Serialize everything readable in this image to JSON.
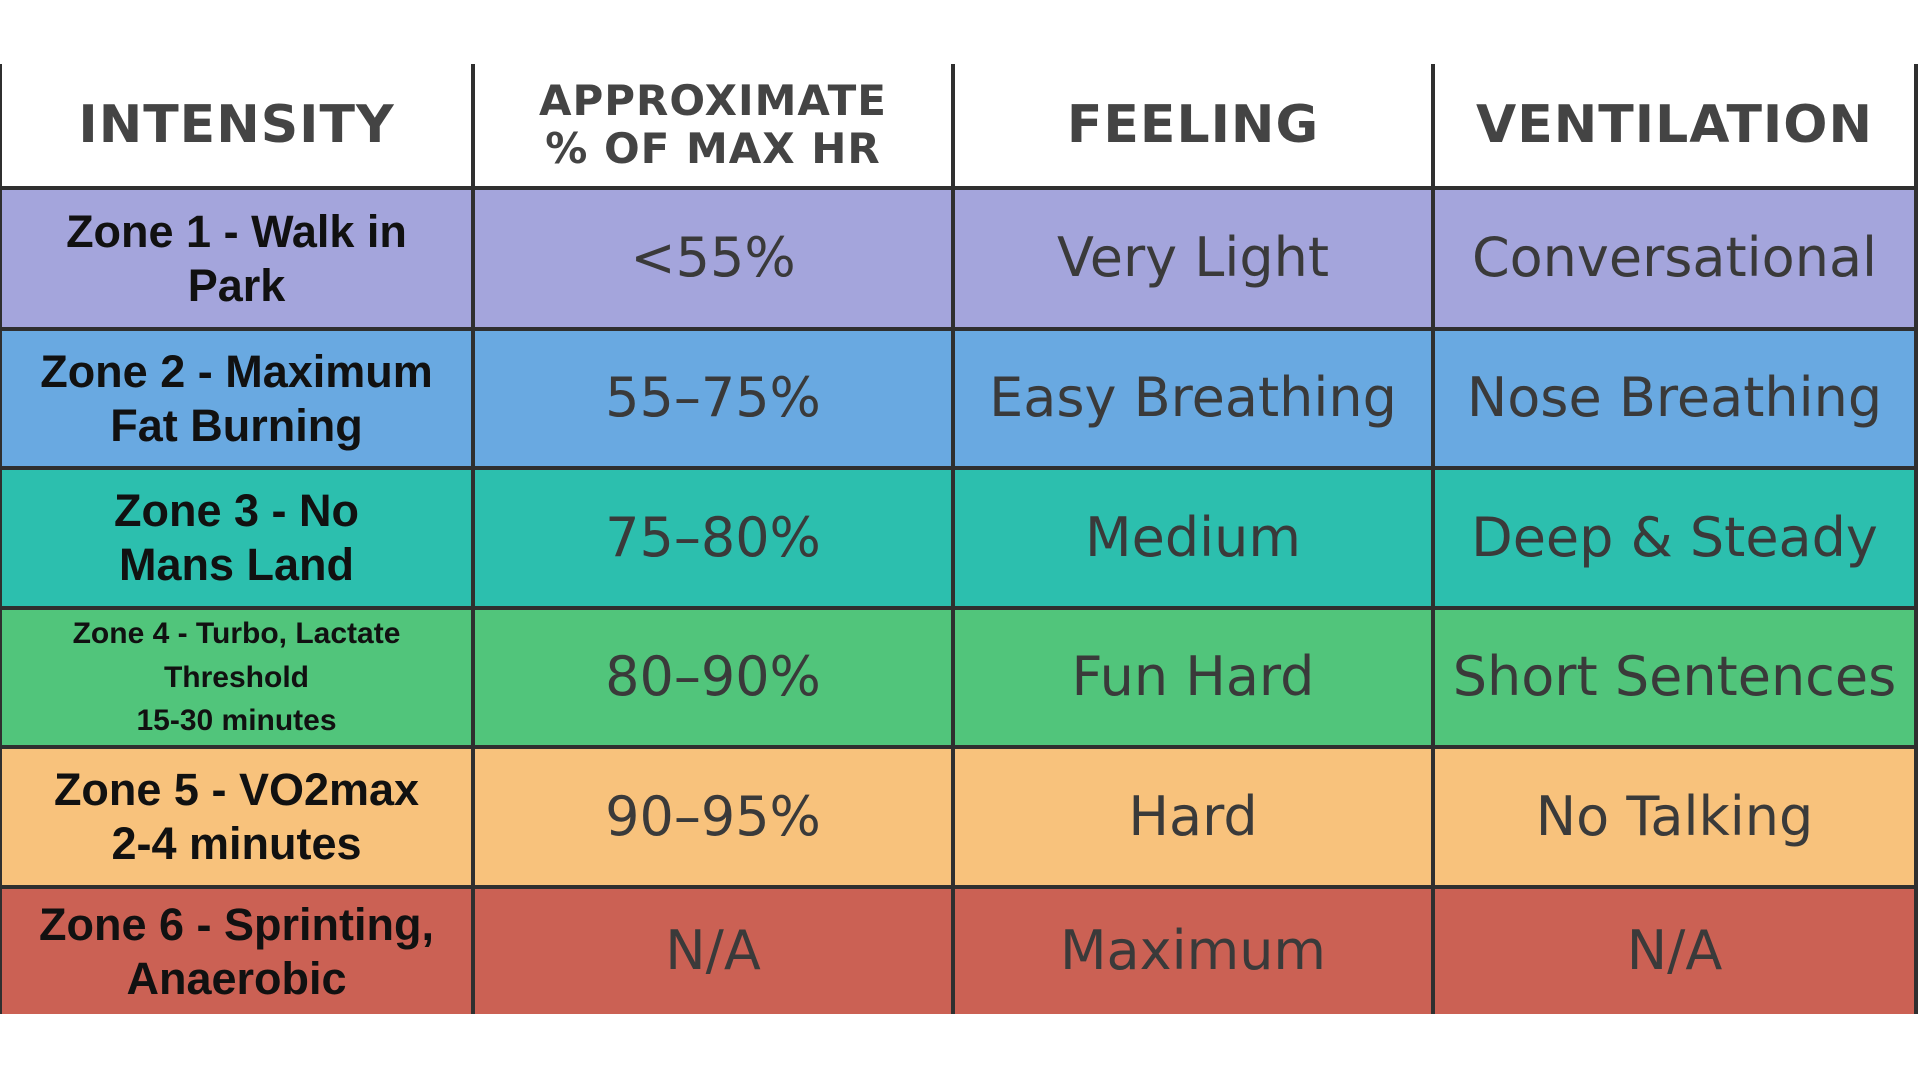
{
  "table": {
    "header": [
      "INTENSITY",
      "APPROXIMATE\n% OF MAX HR",
      "FEELING",
      "VENTILATION"
    ],
    "rows": [
      [
        "Zone 1 - Walk in\nPark",
        "<55%",
        "Very Light",
        "Conversational"
      ],
      [
        "Zone 2 - Maximum\nFat Burning",
        "55–75%",
        "Easy Breathing",
        "Nose Breathing"
      ],
      [
        "Zone 3 - No\nMans Land",
        "75–80%",
        "Medium",
        "Deep & Steady"
      ],
      [
        "Zone 4 - Turbo, Lactate\nThreshold\n15-30 minutes",
        "80–90%",
        "Fun Hard",
        "Short Sentences"
      ],
      [
        "Zone 5 - VO2max\n2-4 minutes",
        "90–95%",
        "Hard",
        "No Talking"
      ],
      [
        "Zone 6 - Sprinting,\nAnaerobic",
        "N/A",
        "Maximum",
        "N/A"
      ]
    ]
  }
}
